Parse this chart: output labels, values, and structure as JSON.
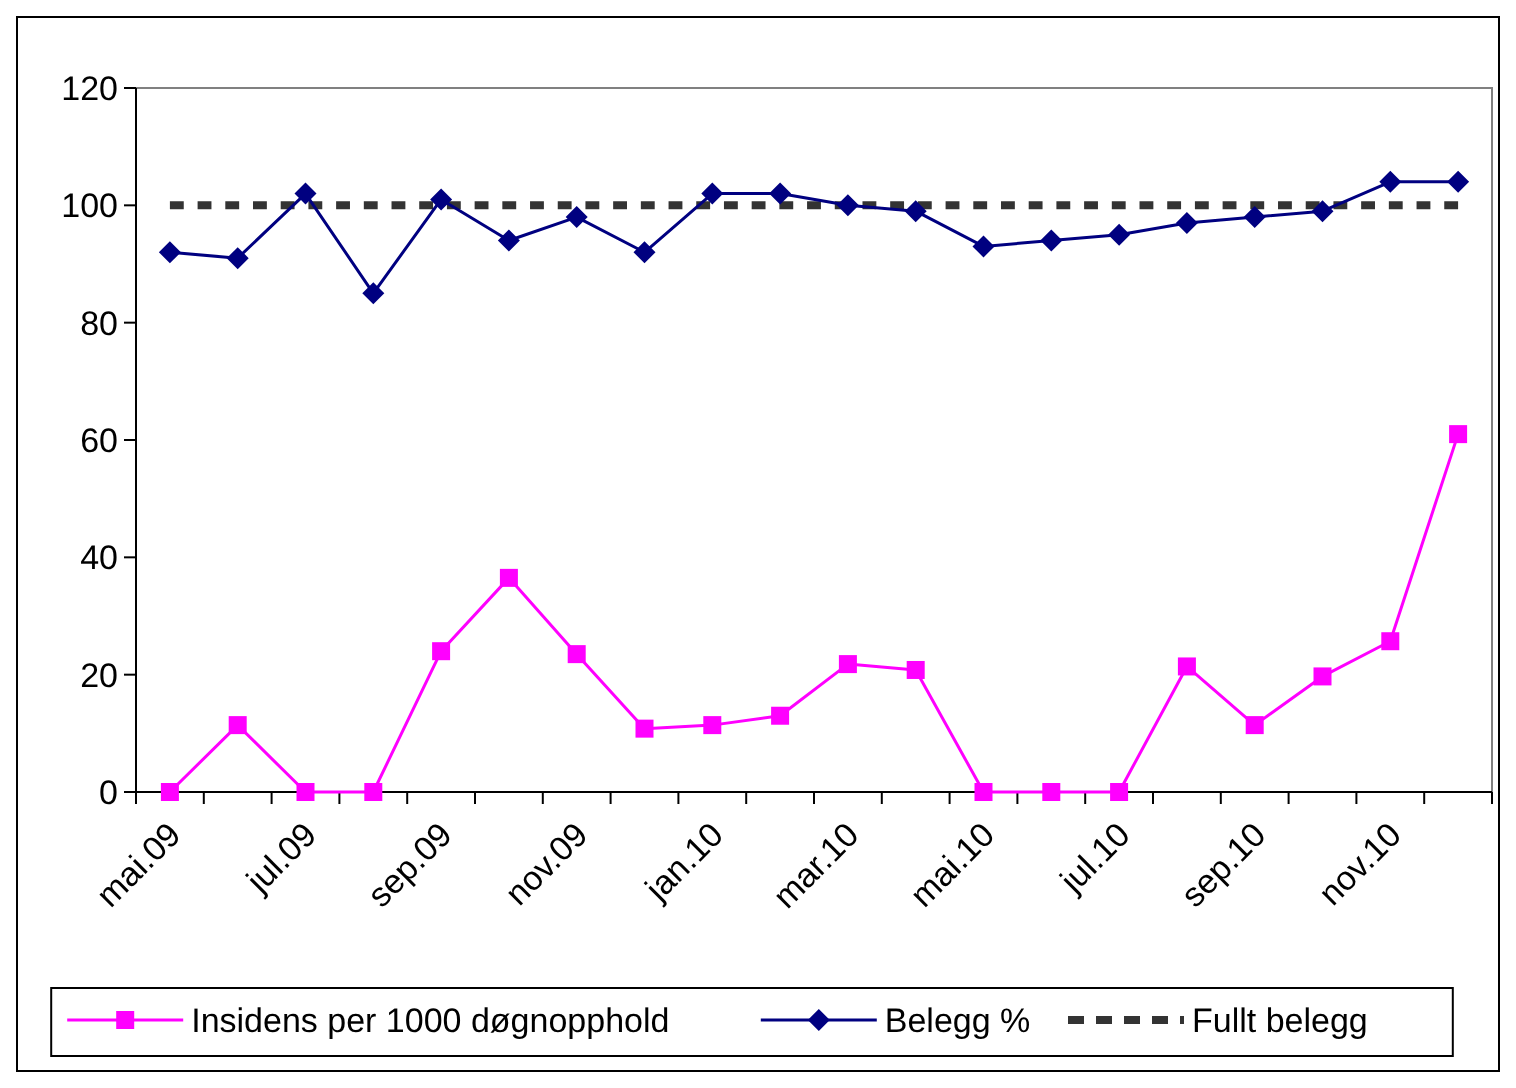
{
  "chart_data": {
    "type": "line",
    "categories": [
      "mai.09",
      null,
      "jul.09",
      null,
      "sep.09",
      null,
      "nov.09",
      null,
      "jan.10",
      null,
      "mar.10",
      null,
      "mai.10",
      null,
      "jul.10",
      null,
      "sep.10",
      null,
      "nov.10",
      null
    ],
    "series": [
      {
        "name": "Insidens per 1000 døgnopphold",
        "color": "#ff00ff",
        "marker": "square",
        "line_style": "solid",
        "values": [
          0,
          11.4,
          0,
          0,
          24,
          36.5,
          23.5,
          10.8,
          11.4,
          13,
          21.8,
          20.8,
          0,
          0,
          0,
          21.4,
          11.4,
          19.7,
          25.7,
          61
        ]
      },
      {
        "name": "Belegg %",
        "color": "#000080",
        "marker": "diamond",
        "line_style": "solid",
        "values": [
          92,
          91,
          102,
          85,
          101,
          94,
          98,
          92,
          102,
          102,
          100,
          99,
          93,
          94,
          95,
          97,
          98,
          99,
          104,
          104
        ]
      },
      {
        "name": "Fullt belegg",
        "color": "#333333",
        "marker": "none",
        "line_style": "dashed",
        "values": [
          100,
          100,
          100,
          100,
          100,
          100,
          100,
          100,
          100,
          100,
          100,
          100,
          100,
          100,
          100,
          100,
          100,
          100,
          100,
          100
        ]
      }
    ],
    "ylim": [
      0,
      120
    ],
    "yticks": [
      0,
      20,
      40,
      60,
      80,
      100,
      120
    ],
    "grid": false,
    "legend": "bottom"
  }
}
